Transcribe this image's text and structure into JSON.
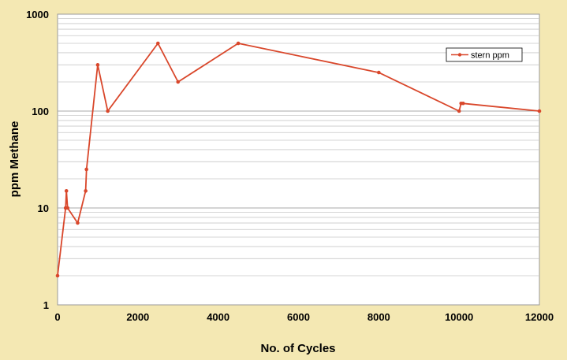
{
  "colors": {
    "background": "#f4e8b3",
    "plot_area": "#ffffff",
    "series_line": "#d9472b",
    "grid": "#c8c8c8"
  },
  "chart_data": {
    "type": "line",
    "title": "",
    "xlabel": "No. of Cycles",
    "ylabel": "ppm Methane",
    "x_scale": "linear",
    "y_scale": "log",
    "xlim": [
      0,
      12000
    ],
    "ylim": [
      1,
      1000
    ],
    "x_ticks": [
      0,
      2000,
      4000,
      6000,
      8000,
      10000,
      12000
    ],
    "y_ticks": [
      1,
      10,
      100,
      1000
    ],
    "grid": "horizontal major and minor",
    "legend_position": "top-right",
    "series": [
      {
        "name": "stern ppm",
        "x": [
          0,
          200,
          220,
          250,
          500,
          700,
          720,
          1000,
          1250,
          2500,
          3000,
          4500,
          8000,
          10000,
          10050,
          10100,
          12000
        ],
        "y": [
          2,
          10,
          15,
          10,
          7,
          15,
          25,
          300,
          100,
          500,
          200,
          500,
          250,
          100,
          120,
          120,
          100
        ]
      }
    ]
  }
}
